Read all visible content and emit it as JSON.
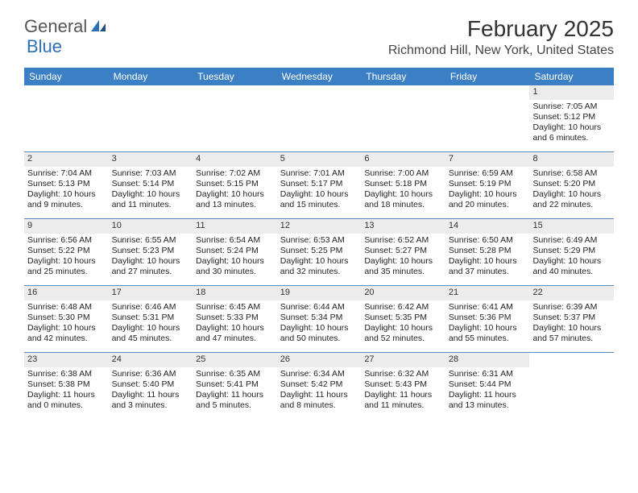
{
  "logo": {
    "general": "General",
    "blue": "Blue"
  },
  "title": "February 2025",
  "location": "Richmond Hill, New York, United States",
  "colors": {
    "header_bg": "#3b7fc4",
    "header_text": "#ffffff",
    "week_border": "#5a8bbd",
    "daynum_bg": "#ececec",
    "body_text": "#222222",
    "logo_blue": "#2e6fb5",
    "logo_gray": "#555555"
  },
  "day_names": [
    "Sunday",
    "Monday",
    "Tuesday",
    "Wednesday",
    "Thursday",
    "Friday",
    "Saturday"
  ],
  "weeks": [
    [
      null,
      null,
      null,
      null,
      null,
      null,
      {
        "n": "1",
        "sr": "Sunrise: 7:05 AM",
        "ss": "Sunset: 5:12 PM",
        "dl": "Daylight: 10 hours and 6 minutes."
      }
    ],
    [
      {
        "n": "2",
        "sr": "Sunrise: 7:04 AM",
        "ss": "Sunset: 5:13 PM",
        "dl": "Daylight: 10 hours and 9 minutes."
      },
      {
        "n": "3",
        "sr": "Sunrise: 7:03 AM",
        "ss": "Sunset: 5:14 PM",
        "dl": "Daylight: 10 hours and 11 minutes."
      },
      {
        "n": "4",
        "sr": "Sunrise: 7:02 AM",
        "ss": "Sunset: 5:15 PM",
        "dl": "Daylight: 10 hours and 13 minutes."
      },
      {
        "n": "5",
        "sr": "Sunrise: 7:01 AM",
        "ss": "Sunset: 5:17 PM",
        "dl": "Daylight: 10 hours and 15 minutes."
      },
      {
        "n": "6",
        "sr": "Sunrise: 7:00 AM",
        "ss": "Sunset: 5:18 PM",
        "dl": "Daylight: 10 hours and 18 minutes."
      },
      {
        "n": "7",
        "sr": "Sunrise: 6:59 AM",
        "ss": "Sunset: 5:19 PM",
        "dl": "Daylight: 10 hours and 20 minutes."
      },
      {
        "n": "8",
        "sr": "Sunrise: 6:58 AM",
        "ss": "Sunset: 5:20 PM",
        "dl": "Daylight: 10 hours and 22 minutes."
      }
    ],
    [
      {
        "n": "9",
        "sr": "Sunrise: 6:56 AM",
        "ss": "Sunset: 5:22 PM",
        "dl": "Daylight: 10 hours and 25 minutes."
      },
      {
        "n": "10",
        "sr": "Sunrise: 6:55 AM",
        "ss": "Sunset: 5:23 PM",
        "dl": "Daylight: 10 hours and 27 minutes."
      },
      {
        "n": "11",
        "sr": "Sunrise: 6:54 AM",
        "ss": "Sunset: 5:24 PM",
        "dl": "Daylight: 10 hours and 30 minutes."
      },
      {
        "n": "12",
        "sr": "Sunrise: 6:53 AM",
        "ss": "Sunset: 5:25 PM",
        "dl": "Daylight: 10 hours and 32 minutes."
      },
      {
        "n": "13",
        "sr": "Sunrise: 6:52 AM",
        "ss": "Sunset: 5:27 PM",
        "dl": "Daylight: 10 hours and 35 minutes."
      },
      {
        "n": "14",
        "sr": "Sunrise: 6:50 AM",
        "ss": "Sunset: 5:28 PM",
        "dl": "Daylight: 10 hours and 37 minutes."
      },
      {
        "n": "15",
        "sr": "Sunrise: 6:49 AM",
        "ss": "Sunset: 5:29 PM",
        "dl": "Daylight: 10 hours and 40 minutes."
      }
    ],
    [
      {
        "n": "16",
        "sr": "Sunrise: 6:48 AM",
        "ss": "Sunset: 5:30 PM",
        "dl": "Daylight: 10 hours and 42 minutes."
      },
      {
        "n": "17",
        "sr": "Sunrise: 6:46 AM",
        "ss": "Sunset: 5:31 PM",
        "dl": "Daylight: 10 hours and 45 minutes."
      },
      {
        "n": "18",
        "sr": "Sunrise: 6:45 AM",
        "ss": "Sunset: 5:33 PM",
        "dl": "Daylight: 10 hours and 47 minutes."
      },
      {
        "n": "19",
        "sr": "Sunrise: 6:44 AM",
        "ss": "Sunset: 5:34 PM",
        "dl": "Daylight: 10 hours and 50 minutes."
      },
      {
        "n": "20",
        "sr": "Sunrise: 6:42 AM",
        "ss": "Sunset: 5:35 PM",
        "dl": "Daylight: 10 hours and 52 minutes."
      },
      {
        "n": "21",
        "sr": "Sunrise: 6:41 AM",
        "ss": "Sunset: 5:36 PM",
        "dl": "Daylight: 10 hours and 55 minutes."
      },
      {
        "n": "22",
        "sr": "Sunrise: 6:39 AM",
        "ss": "Sunset: 5:37 PM",
        "dl": "Daylight: 10 hours and 57 minutes."
      }
    ],
    [
      {
        "n": "23",
        "sr": "Sunrise: 6:38 AM",
        "ss": "Sunset: 5:38 PM",
        "dl": "Daylight: 11 hours and 0 minutes."
      },
      {
        "n": "24",
        "sr": "Sunrise: 6:36 AM",
        "ss": "Sunset: 5:40 PM",
        "dl": "Daylight: 11 hours and 3 minutes."
      },
      {
        "n": "25",
        "sr": "Sunrise: 6:35 AM",
        "ss": "Sunset: 5:41 PM",
        "dl": "Daylight: 11 hours and 5 minutes."
      },
      {
        "n": "26",
        "sr": "Sunrise: 6:34 AM",
        "ss": "Sunset: 5:42 PM",
        "dl": "Daylight: 11 hours and 8 minutes."
      },
      {
        "n": "27",
        "sr": "Sunrise: 6:32 AM",
        "ss": "Sunset: 5:43 PM",
        "dl": "Daylight: 11 hours and 11 minutes."
      },
      {
        "n": "28",
        "sr": "Sunrise: 6:31 AM",
        "ss": "Sunset: 5:44 PM",
        "dl": "Daylight: 11 hours and 13 minutes."
      },
      null
    ]
  ]
}
